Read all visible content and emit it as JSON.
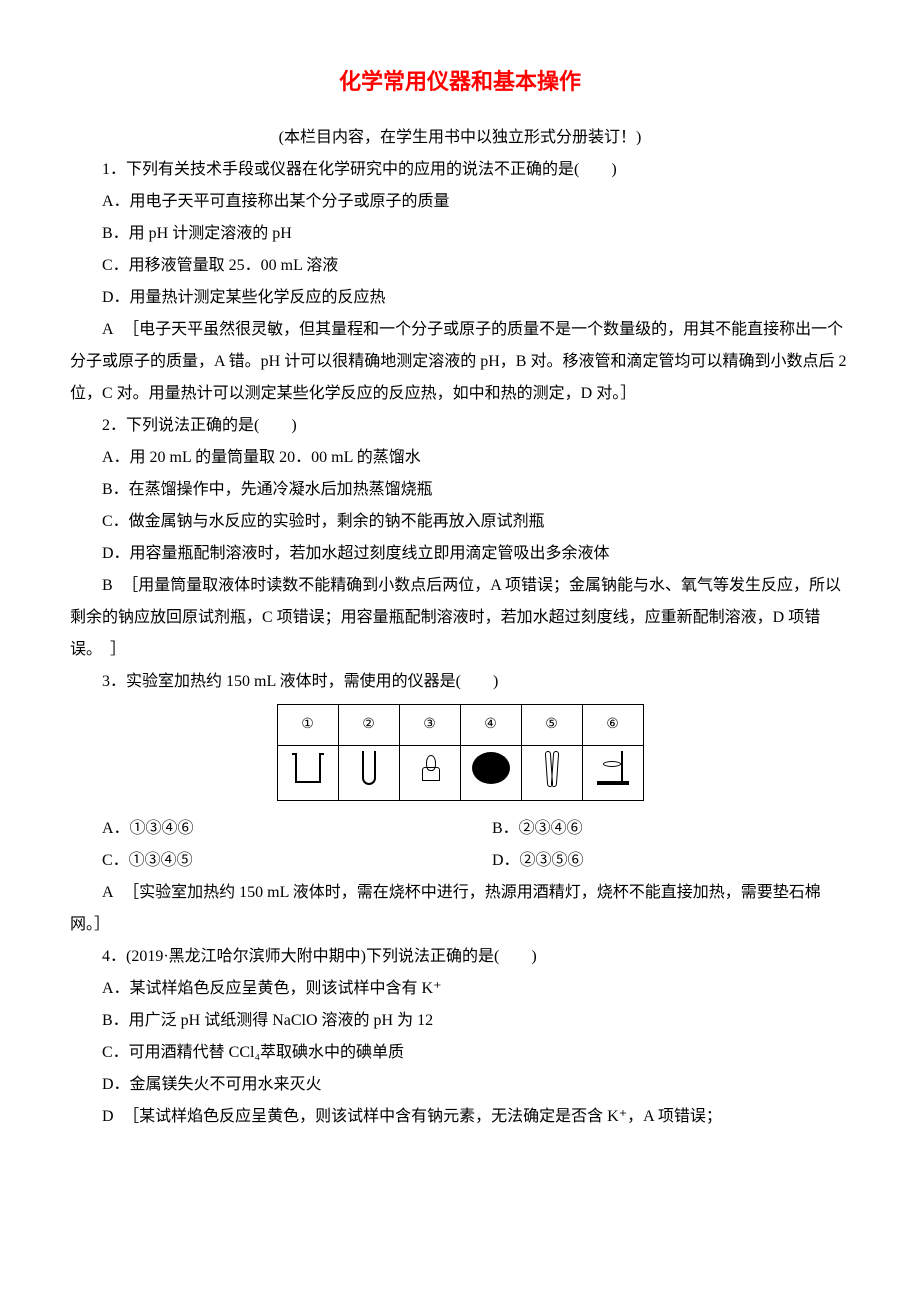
{
  "title": "化学常用仪器和基本操作",
  "subtitle": "(本栏目内容，在学生用书中以独立形式分册装订！)",
  "q1": {
    "stem": "1．下列有关技术手段或仪器在化学研究中的应用的说法不正确的是(　　)",
    "A": "A．用电子天平可直接称出某个分子或原子的质量",
    "B": "B．用 pH 计测定溶液的 pH",
    "C": "C．用移液管量取 25．00 mL 溶液",
    "D": "D．用量热计测定某些化学反应的反应热",
    "answer_letter": "A",
    "explanation": "［电子天平虽然很灵敏，但其量程和一个分子或原子的质量不是一个数量级的，用其不能直接称出一个分子或原子的质量，A 错。pH 计可以很精确地测定溶液的 pH，B 对。移液管和滴定管均可以精确到小数点后 2 位，C 对。用量热计可以测定某些化学反应的反应热，如中和热的测定，D 对。］"
  },
  "q2": {
    "stem": "2．下列说法正确的是(　　)",
    "A": "A．用 20 mL 的量筒量取 20．00 mL 的蒸馏水",
    "B": "B．在蒸馏操作中，先通冷凝水后加热蒸馏烧瓶",
    "C": "C．做金属钠与水反应的实验时，剩余的钠不能再放入原试剂瓶",
    "D": "D．用容量瓶配制溶液时，若加水超过刻度线立即用滴定管吸出多余液体",
    "answer_letter": "B",
    "explanation": "［用量筒量取液体时读数不能精确到小数点后两位，A 项错误；金属钠能与水、氧气等发生反应，所以剩余的钠应放回原试剂瓶，C 项错误；用容量瓶配制溶液时，若加水超过刻度线，应重新配制溶液，D 项错误。　］"
  },
  "q3": {
    "stem": "3．实验室加热约 150 mL 液体时，需使用的仪器是(　　)",
    "table_headers": [
      "①",
      "②",
      "③",
      "④",
      "⑤",
      "⑥"
    ],
    "opts": {
      "A": "A．①③④⑥",
      "B": "B．②③④⑥",
      "C": "C．①③④⑤",
      "D": "D．②③⑤⑥"
    },
    "answer_letter": "A",
    "explanation": "［实验室加热约 150 mL 液体时，需在烧杯中进行，热源用酒精灯，烧杯不能直接加热，需要垫石棉网。］"
  },
  "q4": {
    "stem": "4．(2019·黑龙江哈尔滨师大附中期中)下列说法正确的是(　　)",
    "A": "A．某试样焰色反应呈黄色，则该试样中含有 K⁺",
    "B": "B．用广泛 pH 试纸测得 NaClO 溶液的 pH 为 12",
    "C": "C．可用酒精代替 CCl₄萃取碘水中的碘单质",
    "D": "D．金属镁失火不可用水来灭火",
    "answer_letter": "D",
    "explanation_partial": "［某试样焰色反应呈黄色，则该试样中含有钠元素，无法确定是否含 K⁺，A 项错误；"
  }
}
